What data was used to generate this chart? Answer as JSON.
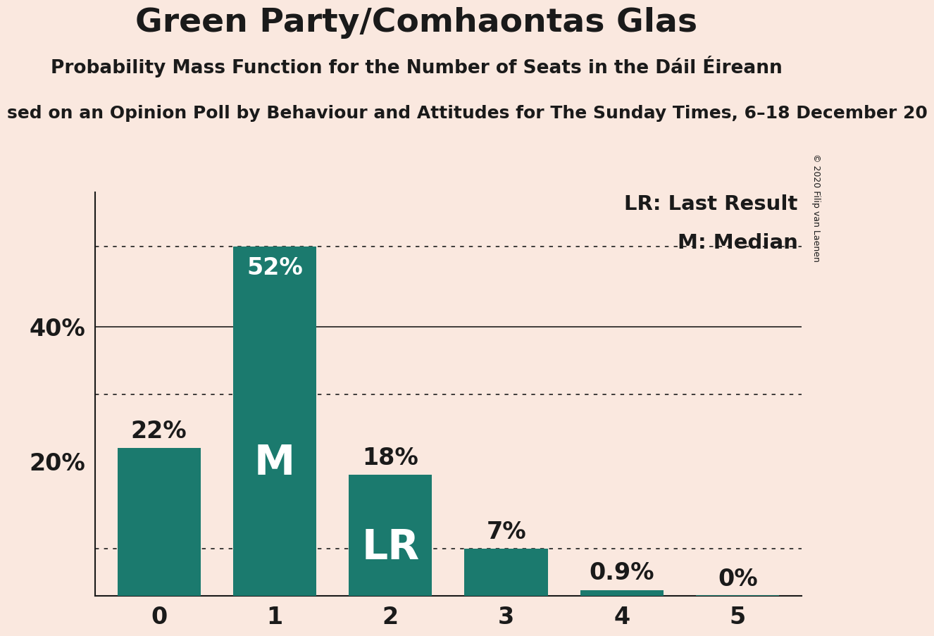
{
  "title": "Green Party/Comhaontas Glas",
  "subtitle": "Probability Mass Function for the Number of Seats in the Dáil Éireann",
  "subtitle2": "sed on an Opinion Poll by Behaviour and Attitudes for The Sunday Times, 6–18 December 20",
  "copyright": "© 2020 Filip van Laenen",
  "categories": [
    0,
    1,
    2,
    3,
    4,
    5
  ],
  "values": [
    0.22,
    0.52,
    0.18,
    0.07,
    0.009,
    0.001
  ],
  "labels": [
    "22%",
    "52%",
    "18%",
    "7%",
    "0.9%",
    "0%"
  ],
  "bar_color": "#1B7A6E",
  "background_color": "#FAE8DF",
  "text_color": "#1A1A1A",
  "bar_label_color": "#FFFFFF",
  "non_bar_label_color": "#1A1A1A",
  "median_bar": 1,
  "lr_bar": 2,
  "yticks": [
    0.2,
    0.4
  ],
  "ytick_labels": [
    "20%",
    "40%"
  ],
  "solid_grid_values": [
    0.4
  ],
  "dotted_grid_values": [
    0.52,
    0.3,
    0.07
  ],
  "ylim": [
    0,
    0.6
  ],
  "legend_lr": "LR: Last Result",
  "legend_m": "M: Median",
  "title_fontsize": 34,
  "subtitle_fontsize": 19,
  "subtitle2_fontsize": 18,
  "bar_label_fontsize": 24,
  "ytick_fontsize": 24,
  "xtick_fontsize": 24,
  "legend_fontsize": 21,
  "bar_width": 0.72
}
